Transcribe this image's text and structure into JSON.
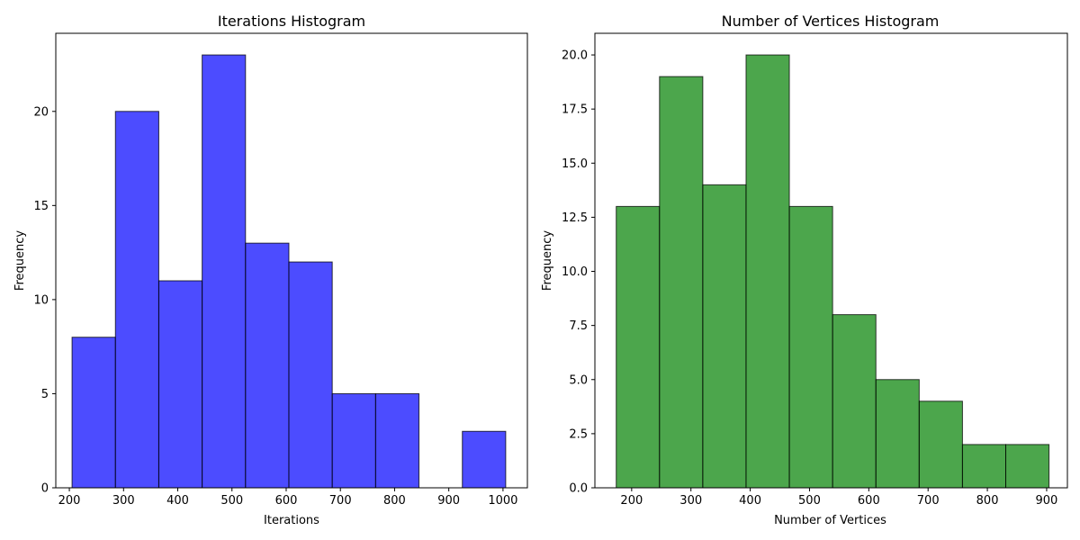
{
  "chart_data": [
    {
      "type": "bar",
      "title": "Iterations Histogram",
      "xlabel": "Iterations",
      "ylabel": "Frequency",
      "color": "#0000ff",
      "opacity": 0.7,
      "xlim": [
        175,
        1045
      ],
      "ylim": [
        0,
        24.15
      ],
      "xticks": [
        200,
        300,
        400,
        500,
        600,
        700,
        800,
        900,
        1000
      ],
      "xtick_labels": [
        "200",
        "300",
        "400",
        "500",
        "600",
        "700",
        "800",
        "900",
        "1000"
      ],
      "yticks": [
        0,
        5,
        10,
        15,
        20
      ],
      "ytick_labels": [
        "0",
        "5",
        "10",
        "15",
        "20"
      ],
      "bins": [
        {
          "x0": 205,
          "x1": 285,
          "count": 8
        },
        {
          "x0": 285,
          "x1": 365,
          "count": 20
        },
        {
          "x0": 365,
          "x1": 445,
          "count": 11
        },
        {
          "x0": 445,
          "x1": 525,
          "count": 23
        },
        {
          "x0": 525,
          "x1": 605,
          "count": 13
        },
        {
          "x0": 605,
          "x1": 685,
          "count": 12
        },
        {
          "x0": 685,
          "x1": 765,
          "count": 5
        },
        {
          "x0": 765,
          "x1": 845,
          "count": 5
        },
        {
          "x0": 845,
          "x1": 925,
          "count": 0
        },
        {
          "x0": 925,
          "x1": 1005,
          "count": 3
        }
      ]
    },
    {
      "type": "bar",
      "title": "Number of Vertices Histogram",
      "xlabel": "Number of Vertices",
      "ylabel": "Frequency",
      "color": "#008000",
      "opacity": 0.7,
      "xlim": [
        138,
        935
      ],
      "ylim": [
        0,
        21
      ],
      "xticks": [
        200,
        300,
        400,
        500,
        600,
        700,
        800,
        900
      ],
      "xtick_labels": [
        "200",
        "300",
        "400",
        "500",
        "600",
        "700",
        "800",
        "900"
      ],
      "yticks": [
        0,
        2.5,
        5,
        7.5,
        10,
        12.5,
        15,
        17.5,
        20
      ],
      "ytick_labels": [
        "0.0",
        "2.5",
        "5.0",
        "7.5",
        "10.0",
        "12.5",
        "15.0",
        "17.5",
        "20.0"
      ],
      "bins": [
        {
          "x0": 174,
          "x1": 247,
          "count": 13
        },
        {
          "x0": 247,
          "x1": 320,
          "count": 19
        },
        {
          "x0": 320,
          "x1": 393,
          "count": 14
        },
        {
          "x0": 393,
          "x1": 466,
          "count": 20
        },
        {
          "x0": 466,
          "x1": 539,
          "count": 13
        },
        {
          "x0": 539,
          "x1": 612,
          "count": 8
        },
        {
          "x0": 612,
          "x1": 685,
          "count": 5
        },
        {
          "x0": 685,
          "x1": 758,
          "count": 4
        },
        {
          "x0": 758,
          "x1": 831,
          "count": 2
        },
        {
          "x0": 831,
          "x1": 904,
          "count": 2
        }
      ]
    }
  ]
}
